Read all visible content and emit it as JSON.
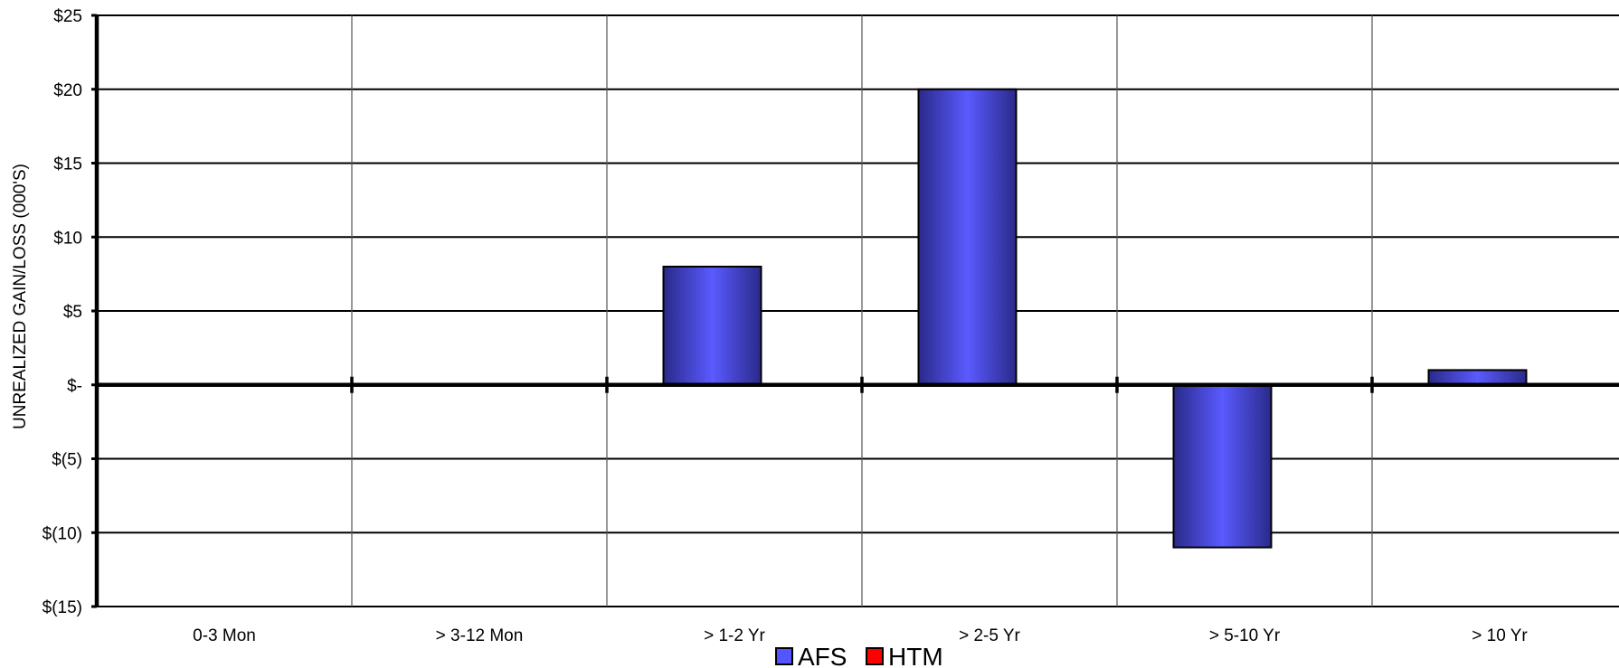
{
  "chart_data": {
    "type": "bar",
    "ylabel": "UNREALIZED GAIN/LOSS (000'S)",
    "xlabel": "",
    "categories": [
      "0-3 Mon",
      "> 3-12 Mon",
      "> 1-2 Yr",
      "> 2-5 Yr",
      "> 5-10 Yr",
      "> 10 Yr"
    ],
    "series": [
      {
        "name": "AFS",
        "color": "#5555ff",
        "values": [
          0,
          0,
          8,
          20,
          -11,
          1
        ]
      },
      {
        "name": "HTM",
        "color": "#ff0000",
        "values": [
          0,
          0,
          0,
          0,
          0,
          0
        ]
      }
    ],
    "ylim": [
      -15,
      25
    ],
    "yticks": [
      {
        "value": 25,
        "label": "$25"
      },
      {
        "value": 20,
        "label": "$20"
      },
      {
        "value": 15,
        "label": "$15"
      },
      {
        "value": 10,
        "label": "$10"
      },
      {
        "value": 5,
        "label": "$5"
      },
      {
        "value": 0,
        "label": "$-"
      },
      {
        "value": -5,
        "label": "$(5)"
      },
      {
        "value": -10,
        "label": "$(10)"
      },
      {
        "value": -15,
        "label": "$(15)"
      }
    ],
    "grid": true,
    "legend_position": "bottom-center"
  }
}
